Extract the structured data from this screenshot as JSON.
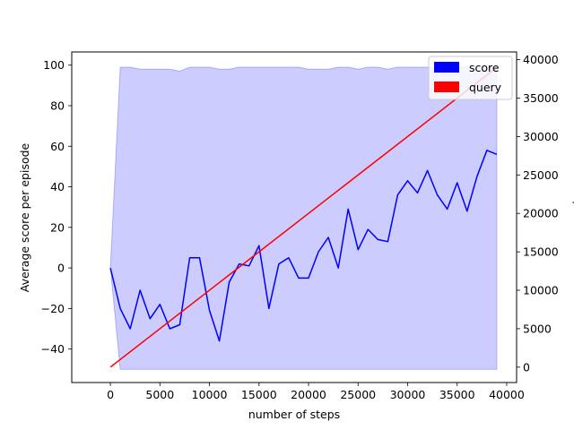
{
  "chart_data": {
    "type": "line",
    "xlabel": "number of steps",
    "ylabel_left": "Average score per episode",
    "ylabel_right": "queries",
    "xlim": [
      -3900,
      41000
    ],
    "ylim_left": [
      -56.5,
      106.5
    ],
    "ylim_right": [
      -2000,
      41000
    ],
    "x_ticks": [
      0,
      5000,
      10000,
      15000,
      20000,
      25000,
      30000,
      35000,
      40000
    ],
    "y_left_ticks": [
      -40,
      -20,
      0,
      20,
      40,
      60,
      80,
      100
    ],
    "y_right_ticks": [
      0,
      5000,
      10000,
      15000,
      20000,
      25000,
      30000,
      35000,
      40000
    ],
    "grid": false,
    "legend_position": "top-right",
    "legend": [
      {
        "label": "score",
        "color": "#0000ff"
      },
      {
        "label": "query",
        "color": "#ff0000"
      }
    ],
    "series": [
      {
        "name": "score",
        "axis": "left",
        "color": "#0000ff",
        "x": [
          0,
          1000,
          2000,
          3000,
          4000,
          5000,
          6000,
          7000,
          8000,
          9000,
          10000,
          11000,
          12000,
          13000,
          14000,
          15000,
          16000,
          17000,
          18000,
          19000,
          20000,
          21000,
          22000,
          23000,
          24000,
          25000,
          26000,
          27000,
          28000,
          29000,
          30000,
          31000,
          32000,
          33000,
          34000,
          35000,
          36000,
          37000,
          38000,
          39000
        ],
        "values": [
          0,
          -20,
          -30,
          -11,
          -25,
          -18,
          -30,
          -28,
          5,
          5,
          -21,
          -36,
          -7,
          2,
          1,
          11,
          -20,
          2,
          5,
          -5,
          -5,
          8,
          15,
          0,
          29,
          9,
          19,
          14,
          13,
          36,
          43,
          37,
          48,
          36,
          29,
          42,
          28,
          45,
          58,
          56
        ]
      },
      {
        "name": "score band",
        "axis": "left",
        "color": "#0000ff",
        "x": [
          0,
          1000,
          2000,
          3000,
          4000,
          5000,
          6000,
          7000,
          8000,
          9000,
          10000,
          11000,
          12000,
          13000,
          14000,
          15000,
          16000,
          17000,
          18000,
          19000,
          20000,
          21000,
          22000,
          23000,
          24000,
          25000,
          26000,
          27000,
          28000,
          29000,
          30000,
          31000,
          32000,
          33000,
          34000,
          35000,
          36000,
          37000,
          38000,
          39000
        ],
        "upper": [
          0,
          99,
          99,
          98,
          98,
          98,
          98,
          97,
          99,
          99,
          99,
          98,
          98,
          99,
          99,
          99,
          99,
          99,
          99,
          99,
          98,
          98,
          98,
          99,
          99,
          98,
          99,
          99,
          98,
          99,
          99,
          99,
          99,
          99,
          99,
          99,
          99,
          99,
          99,
          99
        ],
        "lower": [
          0,
          -50,
          -50,
          -50,
          -50,
          -50,
          -50,
          -50,
          -50,
          -50,
          -50,
          -50,
          -50,
          -50,
          -50,
          -50,
          -50,
          -50,
          -50,
          -50,
          -50,
          -50,
          -50,
          -50,
          -50,
          -50,
          -50,
          -50,
          -50,
          -50,
          -50,
          -50,
          -50,
          -50,
          -50,
          -50,
          -50,
          -50,
          -50,
          -50
        ]
      },
      {
        "name": "query",
        "axis": "right",
        "color": "#ff0000",
        "x": [
          0,
          39000
        ],
        "values": [
          0,
          39000
        ]
      }
    ]
  }
}
